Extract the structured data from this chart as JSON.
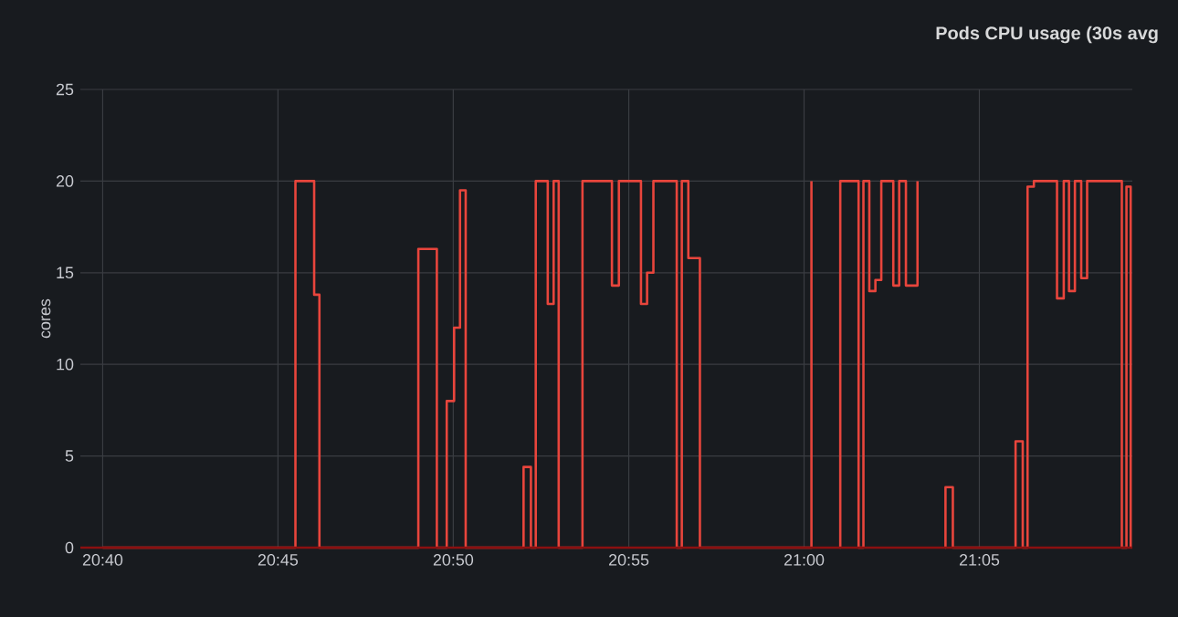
{
  "chart_data": {
    "type": "step",
    "title": "Pods CPU usage (30s avg",
    "ylabel": "cores",
    "grid": true,
    "xlim": [
      20.6561,
      21.156
    ],
    "ylim": [
      0,
      25
    ],
    "xticks": [
      {
        "value": 20.6667,
        "label": "20:40"
      },
      {
        "value": 20.75,
        "label": "20:45"
      },
      {
        "value": 20.8333,
        "label": "20:50"
      },
      {
        "value": 20.9167,
        "label": "20:55"
      },
      {
        "value": 21.0,
        "label": "21:00"
      },
      {
        "value": 21.0833,
        "label": "21:05"
      }
    ],
    "yticks": [
      0,
      5,
      10,
      15,
      20,
      25
    ],
    "series": [
      {
        "color": "#8b1010",
        "x": [
          20.6561,
          21.156
        ],
        "values": [
          0,
          0
        ]
      },
      {
        "color": "#e8453c",
        "x": [
          20.6667,
          20.7583,
          20.7672,
          20.7697,
          20.8167,
          20.8255,
          20.8302,
          20.8337,
          20.8365,
          20.8392,
          20.8667,
          20.8702,
          20.8725,
          20.8782,
          20.881,
          20.8834,
          20.8947,
          20.9087,
          20.912,
          20.9225,
          20.9254,
          20.9284,
          20.9395,
          20.9419,
          20.945,
          20.9505,
          21.0035,
          21.0114,
          21.017,
          21.0172,
          21.0259,
          21.0282,
          21.031,
          21.0339,
          21.0367,
          21.0424,
          21.0452,
          21.0484,
          21.0539,
          21.0645,
          21.067,
          21.0672,
          21.0707,
          21.1005,
          21.1039,
          21.1062,
          21.1092,
          21.1202,
          21.1234,
          21.1259,
          21.1287,
          21.1317,
          21.1345,
          21.151,
          21.1532,
          21.1552
        ],
        "values": [
          0,
          20,
          13.8,
          0,
          16.3,
          0,
          8.0,
          12.0,
          19.5,
          0,
          4.4,
          0,
          20,
          13.3,
          20,
          0,
          20,
          14.3,
          20,
          13.3,
          15,
          20,
          0,
          20,
          15.8,
          0,
          20,
          null,
          0,
          20,
          0,
          20,
          14,
          14.6,
          20,
          14.3,
          20,
          14.3,
          20,
          null,
          0,
          3.3,
          0,
          5.8,
          0,
          19.7,
          20,
          13.6,
          20,
          14,
          20,
          14.7,
          20,
          0,
          19.7,
          0
        ]
      }
    ]
  }
}
